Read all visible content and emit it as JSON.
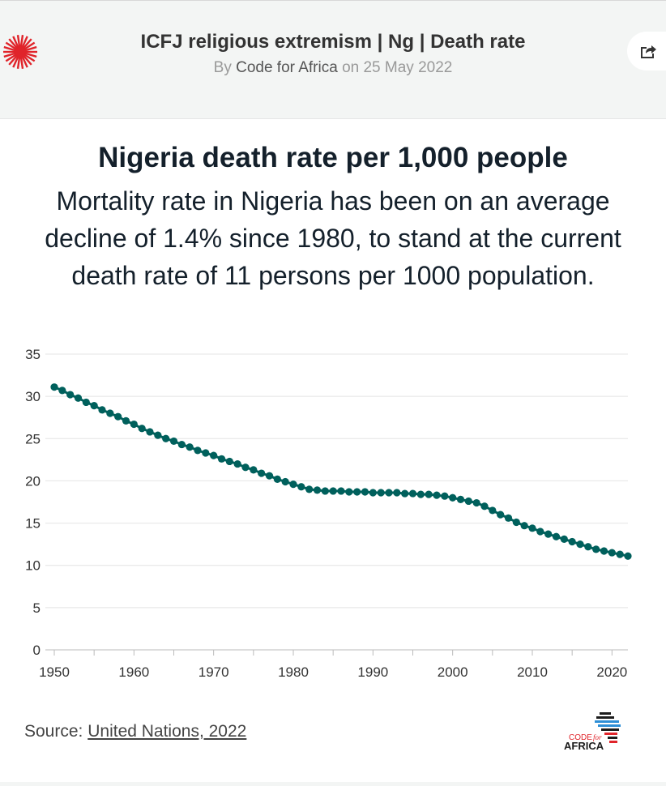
{
  "header": {
    "title": "ICFJ religious extremism | Ng | Death rate",
    "by_prefix": "By",
    "author": "Code for Africa",
    "on_prefix": "on",
    "date": "25 May 2022"
  },
  "icons": {
    "logo": "red-starburst-logo-icon",
    "share": "share-icon",
    "brand": "code-for-africa-logo-icon"
  },
  "colors": {
    "line": "#00605c",
    "logo_red": "#e0242a",
    "grid": "#e4e4e4"
  },
  "chart_data": {
    "type": "line",
    "title": "Nigeria death rate per 1,000 people",
    "subtitle": "Mortality rate in Nigeria has been on an average decline of 1.4% since 1980, to stand at the current death rate of 11 persons per 1000 population.",
    "xlabel": "",
    "ylabel": "",
    "xlim": [
      1950,
      2022
    ],
    "ylim": [
      0,
      35
    ],
    "x_ticks": [
      1950,
      1960,
      1970,
      1980,
      1990,
      2000,
      2010,
      2020
    ],
    "y_ticks": [
      0,
      5,
      10,
      15,
      20,
      25,
      30,
      35
    ],
    "grid": true,
    "markers": true,
    "series": [
      {
        "x": [
          1950,
          1951,
          1952,
          1953,
          1954,
          1955,
          1956,
          1957,
          1958,
          1959,
          1960,
          1961,
          1962,
          1963,
          1964,
          1965,
          1966,
          1967,
          1968,
          1969,
          1970,
          1971,
          1972,
          1973,
          1974,
          1975,
          1976,
          1977,
          1978,
          1979,
          1980,
          1981,
          1982,
          1983,
          1984,
          1985,
          1986,
          1987,
          1988,
          1989,
          1990,
          1991,
          1992,
          1993,
          1994,
          1995,
          1996,
          1997,
          1998,
          1999,
          2000,
          2001,
          2002,
          2003,
          2004,
          2005,
          2006,
          2007,
          2008,
          2009,
          2010,
          2011,
          2012,
          2013,
          2014,
          2015,
          2016,
          2017,
          2018,
          2019,
          2020,
          2021,
          2022
        ],
        "values": [
          31.1,
          30.7,
          30.2,
          29.8,
          29.3,
          28.9,
          28.4,
          28.0,
          27.6,
          27.1,
          26.7,
          26.2,
          25.8,
          25.4,
          25.0,
          24.7,
          24.3,
          24.0,
          23.6,
          23.3,
          23.0,
          22.6,
          22.3,
          22.0,
          21.6,
          21.3,
          20.9,
          20.6,
          20.2,
          19.9,
          19.6,
          19.3,
          19.0,
          18.9,
          18.8,
          18.8,
          18.8,
          18.7,
          18.7,
          18.7,
          18.6,
          18.6,
          18.6,
          18.6,
          18.5,
          18.5,
          18.4,
          18.4,
          18.3,
          18.2,
          18.0,
          17.8,
          17.6,
          17.4,
          17.0,
          16.5,
          16.0,
          15.6,
          15.1,
          14.7,
          14.4,
          14.0,
          13.7,
          13.4,
          13.1,
          12.8,
          12.5,
          12.2,
          11.9,
          11.7,
          11.5,
          11.3,
          11.1
        ]
      }
    ]
  },
  "source": {
    "prefix": "Source:",
    "link": "United Nations, 2022"
  },
  "brand": {
    "line1": "CODE",
    "line2": "for",
    "line3": "AFRICA"
  }
}
